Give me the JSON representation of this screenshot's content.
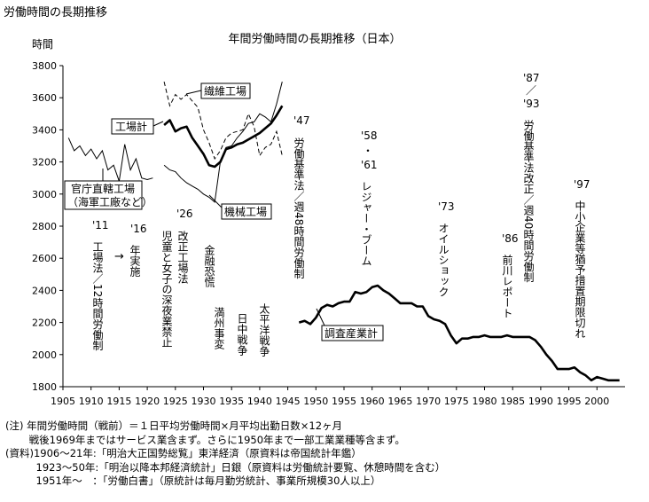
{
  "page_title": "労働時間の長期推移",
  "chart_data": {
    "type": "line",
    "title": "年間労働時間の長期推移（日本）",
    "ylabel": "時間",
    "xlabel": "",
    "xlim": [
      1905,
      2005
    ],
    "ylim": [
      1800,
      3800
    ],
    "xticks": [
      1905,
      1910,
      1915,
      1920,
      1925,
      1930,
      1935,
      1940,
      1945,
      1950,
      1955,
      1960,
      1965,
      1970,
      1975,
      1980,
      1985,
      1990,
      1995,
      2000
    ],
    "yticks": [
      1800,
      2000,
      2200,
      2400,
      2600,
      2800,
      3000,
      3200,
      3400,
      3600,
      3800
    ],
    "grid": false,
    "legend": "none",
    "series": [
      {
        "name": "官庁直轄工場（海軍工廠など）",
        "style": "thin",
        "x": [
          1906,
          1907,
          1908,
          1909,
          1910,
          1911,
          1912,
          1913,
          1914,
          1915,
          1916,
          1917,
          1918,
          1919,
          1920,
          1921
        ],
        "y": [
          3350,
          3270,
          3300,
          3240,
          3280,
          3220,
          3270,
          3150,
          3180,
          3080,
          3310,
          3150,
          3220,
          3100,
          3090,
          3100
        ]
      },
      {
        "name": "工場計",
        "style": "thick",
        "x": [
          1923,
          1924,
          1925,
          1926,
          1927,
          1928,
          1929,
          1930,
          1931,
          1932,
          1933,
          1934,
          1935,
          1936,
          1937,
          1938,
          1939,
          1940,
          1941,
          1942,
          1943,
          1944
        ],
        "y": [
          3430,
          3460,
          3390,
          3410,
          3420,
          3350,
          3300,
          3250,
          3180,
          3170,
          3200,
          3280,
          3290,
          3310,
          3320,
          3340,
          3360,
          3380,
          3410,
          3440,
          3490,
          3550
        ]
      },
      {
        "name": "繊維工場",
        "style": "dashed",
        "x": [
          1923,
          1924,
          1925,
          1926,
          1927,
          1928,
          1929,
          1930,
          1931,
          1932,
          1933,
          1934,
          1935,
          1936,
          1937,
          1938,
          1939,
          1940,
          1941,
          1942,
          1943,
          1944
        ],
        "y": [
          3700,
          3550,
          3620,
          3590,
          3620,
          3580,
          3540,
          3400,
          3320,
          3220,
          3270,
          3350,
          3380,
          3390,
          3400,
          3500,
          3420,
          3240,
          3290,
          3310,
          3390,
          3240
        ]
      },
      {
        "name": "機械工場",
        "style": "thin",
        "x": [
          1923,
          1924,
          1925,
          1926,
          1927,
          1928,
          1929,
          1930,
          1931,
          1932,
          1933,
          1934,
          1935,
          1936,
          1937,
          1938,
          1939,
          1940,
          1941,
          1942,
          1943,
          1944
        ],
        "y": [
          3180,
          3150,
          3140,
          3100,
          3070,
          3050,
          3030,
          3000,
          2980,
          2950,
          3200,
          3290,
          3300,
          3350,
          3390,
          3440,
          3450,
          3500,
          3480,
          3450,
          3560,
          3700
        ]
      },
      {
        "name": "調査産業計",
        "style": "thick",
        "x": [
          1947,
          1948,
          1949,
          1950,
          1951,
          1952,
          1953,
          1954,
          1955,
          1956,
          1957,
          1958,
          1959,
          1960,
          1961,
          1962,
          1963,
          1964,
          1965,
          1966,
          1967,
          1968,
          1969,
          1970,
          1971,
          1972,
          1973,
          1974,
          1975,
          1976,
          1977,
          1978,
          1979,
          1980,
          1981,
          1982,
          1983,
          1984,
          1985,
          1986,
          1987,
          1988,
          1989,
          1990,
          1991,
          1992,
          1993,
          1994,
          1995,
          1996,
          1997,
          1998,
          1999,
          2000,
          2001,
          2002,
          2003,
          2004
        ],
        "y": [
          2200,
          2210,
          2190,
          2230,
          2290,
          2310,
          2300,
          2320,
          2330,
          2330,
          2390,
          2380,
          2390,
          2420,
          2430,
          2400,
          2380,
          2350,
          2320,
          2320,
          2320,
          2300,
          2300,
          2240,
          2220,
          2210,
          2190,
          2120,
          2070,
          2100,
          2100,
          2110,
          2110,
          2120,
          2110,
          2110,
          2110,
          2120,
          2110,
          2110,
          2110,
          2110,
          2090,
          2050,
          2000,
          1960,
          1910,
          1910,
          1910,
          1920,
          1890,
          1870,
          1840,
          1860,
          1850,
          1840,
          1840,
          1840
        ]
      }
    ],
    "labels": {
      "kancho": [
        "官庁直轄工場",
        "（海軍工廠など）"
      ],
      "kojo": "工場計",
      "seni": "繊維工場",
      "kikai": "機械工場",
      "chosa": "調査産業計"
    },
    "annotations": [
      {
        "year": "'11",
        "text": "工場法／12時間労働制"
      },
      {
        "year": "'16",
        "text": "年実施"
      },
      {
        "year": "'26",
        "text": "改正工場法"
      },
      {
        "year": "",
        "text": "児童と女子の深夜業禁止"
      },
      {
        "year": "",
        "text": "金融恐慌"
      },
      {
        "year": "",
        "text": "満州事変"
      },
      {
        "year": "",
        "text": "日中戦争"
      },
      {
        "year": "",
        "text": "太平洋戦争"
      },
      {
        "year": "'47",
        "text": "労働基準法／週48時間労働制"
      },
      {
        "year": "'58",
        "text": "・"
      },
      {
        "year": "'61",
        "text": "レジャー・ブーム"
      },
      {
        "year": "'73",
        "text": "オイルショック"
      },
      {
        "year": "'86",
        "text": "前川レポート"
      },
      {
        "year": "'87",
        "text": "／"
      },
      {
        "year": "'93",
        "text": "労働基準法改正／週40時間労働制"
      },
      {
        "year": "'97",
        "text": "中小企業等猶予措置期限切れ"
      }
    ],
    "arrow": "→"
  },
  "notes": [
    "(注) 年間労働時間（戦前）＝１日平均労働時間×月平均出勤日数×12ヶ月",
    "　　 戦後1969年まではサービス業含まず。さらに1950年まで一部工業業種等含まず。",
    "(資料)1906〜21年:「明治大正国勢総覧」東洋経済（原資料は帝国統計年鑑）",
    "　　　1923〜50年:「明治以降本邦経済統計」日銀（原資料は労働統計要覧、休憩時間を含む）",
    "　　　1951年〜　：「労働白書」（原統計は毎月勤労統計、事業所規模30人以上）"
  ]
}
